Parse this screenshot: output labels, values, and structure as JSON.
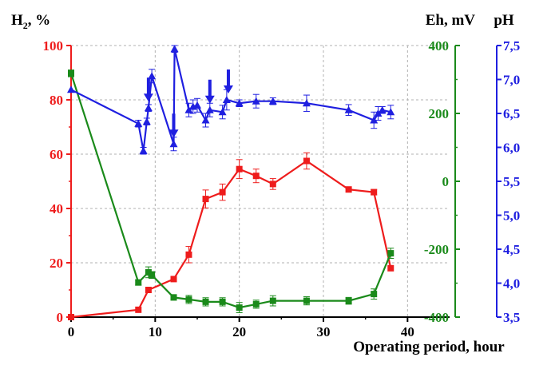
{
  "chart_data": {
    "type": "line",
    "xlabel": "Operating period, hour",
    "xlim": [
      0,
      45
    ],
    "x_ticks": [
      0,
      10,
      20,
      30,
      40
    ],
    "grid": true,
    "colors": {
      "h2": "#ee1c1c",
      "eh": "#1a8a1a",
      "ph": "#1f1fe0",
      "grid": "#b0b0b0"
    },
    "axes": {
      "h2": {
        "label_main": "H",
        "label_sub": "2",
        "label_rest": ", %",
        "ylim": [
          0,
          100
        ],
        "ticks": [
          "0",
          "20",
          "40",
          "60",
          "80",
          "100"
        ]
      },
      "eh": {
        "label": "Eh, mV",
        "ylim": [
          -400,
          400
        ],
        "ticks": [
          "-400",
          "-200",
          "0",
          "200",
          "400"
        ]
      },
      "ph": {
        "label": "pH",
        "ylim": [
          3.5,
          7.5
        ],
        "ticks": [
          "3,5",
          "4,0",
          "4,5",
          "5,0",
          "5,5",
          "6,0",
          "6,5",
          "7,0",
          "7,5"
        ]
      }
    },
    "arrows_at_x": [
      9.2,
      12.2,
      16.5,
      18.7
    ],
    "series": [
      {
        "name": "H2",
        "axis": "h2",
        "marker": "square",
        "points": [
          {
            "x": 0,
            "y": 0,
            "err": 0
          },
          {
            "x": 8,
            "y": 2.7,
            "err": 0
          },
          {
            "x": 9.2,
            "y": 10,
            "err": 0
          },
          {
            "x": 12.2,
            "y": 14,
            "err": 0
          },
          {
            "x": 14,
            "y": 23,
            "err": 3
          },
          {
            "x": 16,
            "y": 43.5,
            "err": 3.3
          },
          {
            "x": 18,
            "y": 46,
            "err": 3
          },
          {
            "x": 20,
            "y": 54.5,
            "err": 3.5
          },
          {
            "x": 22,
            "y": 52,
            "err": 2.5
          },
          {
            "x": 24,
            "y": 49,
            "err": 2
          },
          {
            "x": 28,
            "y": 57.5,
            "err": 3
          },
          {
            "x": 33,
            "y": 47,
            "err": 0
          },
          {
            "x": 36,
            "y": 46,
            "err": 1
          },
          {
            "x": 38,
            "y": 18,
            "err": 0
          }
        ]
      },
      {
        "name": "Eh",
        "axis": "eh",
        "marker": "square",
        "points": [
          {
            "x": 0,
            "y": 318,
            "err": 10
          },
          {
            "x": 8,
            "y": -298,
            "err": 8
          },
          {
            "x": 9.2,
            "y": -268,
            "err": 16
          },
          {
            "x": 9.6,
            "y": -276,
            "err": 10
          },
          {
            "x": 12.2,
            "y": -342,
            "err": 8
          },
          {
            "x": 14,
            "y": -348,
            "err": 12
          },
          {
            "x": 16,
            "y": -355,
            "err": 12
          },
          {
            "x": 18,
            "y": -355,
            "err": 12
          },
          {
            "x": 20,
            "y": -372,
            "err": 15
          },
          {
            "x": 22,
            "y": -362,
            "err": 12
          },
          {
            "x": 24,
            "y": -352,
            "err": 15
          },
          {
            "x": 28,
            "y": -352,
            "err": 12
          },
          {
            "x": 33,
            "y": -352,
            "err": 10
          },
          {
            "x": 36,
            "y": -332,
            "err": 15
          },
          {
            "x": 38,
            "y": -212,
            "err": 15
          }
        ]
      },
      {
        "name": "pH",
        "axis": "ph",
        "marker": "triangle",
        "points": [
          {
            "x": 0,
            "y": 6.85,
            "err": 0
          },
          {
            "x": 8,
            "y": 6.35,
            "err": 0.05
          },
          {
            "x": 8.6,
            "y": 5.95,
            "err": 0.05
          },
          {
            "x": 9,
            "y": 6.38,
            "err": 0.05
          },
          {
            "x": 9.2,
            "y": 6.58,
            "err": 0.05
          },
          {
            "x": 9.6,
            "y": 7.05,
            "err": 0.1
          },
          {
            "x": 12.2,
            "y": 6.05,
            "err": 0.1
          },
          {
            "x": 12.3,
            "y": 7.45,
            "err": 0.05
          },
          {
            "x": 14,
            "y": 6.55,
            "err": 0.1
          },
          {
            "x": 14.5,
            "y": 6.6,
            "err": 0.1
          },
          {
            "x": 15,
            "y": 6.62,
            "err": 0.1
          },
          {
            "x": 16,
            "y": 6.4,
            "err": 0.1
          },
          {
            "x": 16.5,
            "y": 6.55,
            "err": 0.1
          },
          {
            "x": 18,
            "y": 6.52,
            "err": 0.1
          },
          {
            "x": 18.5,
            "y": 6.7,
            "err": 0.15
          },
          {
            "x": 20,
            "y": 6.65,
            "err": 0.05
          },
          {
            "x": 22,
            "y": 6.68,
            "err": 0.1
          },
          {
            "x": 24,
            "y": 6.68,
            "err": 0.05
          },
          {
            "x": 28,
            "y": 6.65,
            "err": 0.12
          },
          {
            "x": 33,
            "y": 6.55,
            "err": 0.08
          },
          {
            "x": 36,
            "y": 6.4,
            "err": 0.12
          },
          {
            "x": 36.5,
            "y": 6.5,
            "err": 0.1
          },
          {
            "x": 37,
            "y": 6.55,
            "err": 0.05
          },
          {
            "x": 38,
            "y": 6.52,
            "err": 0.1
          }
        ]
      }
    ]
  }
}
